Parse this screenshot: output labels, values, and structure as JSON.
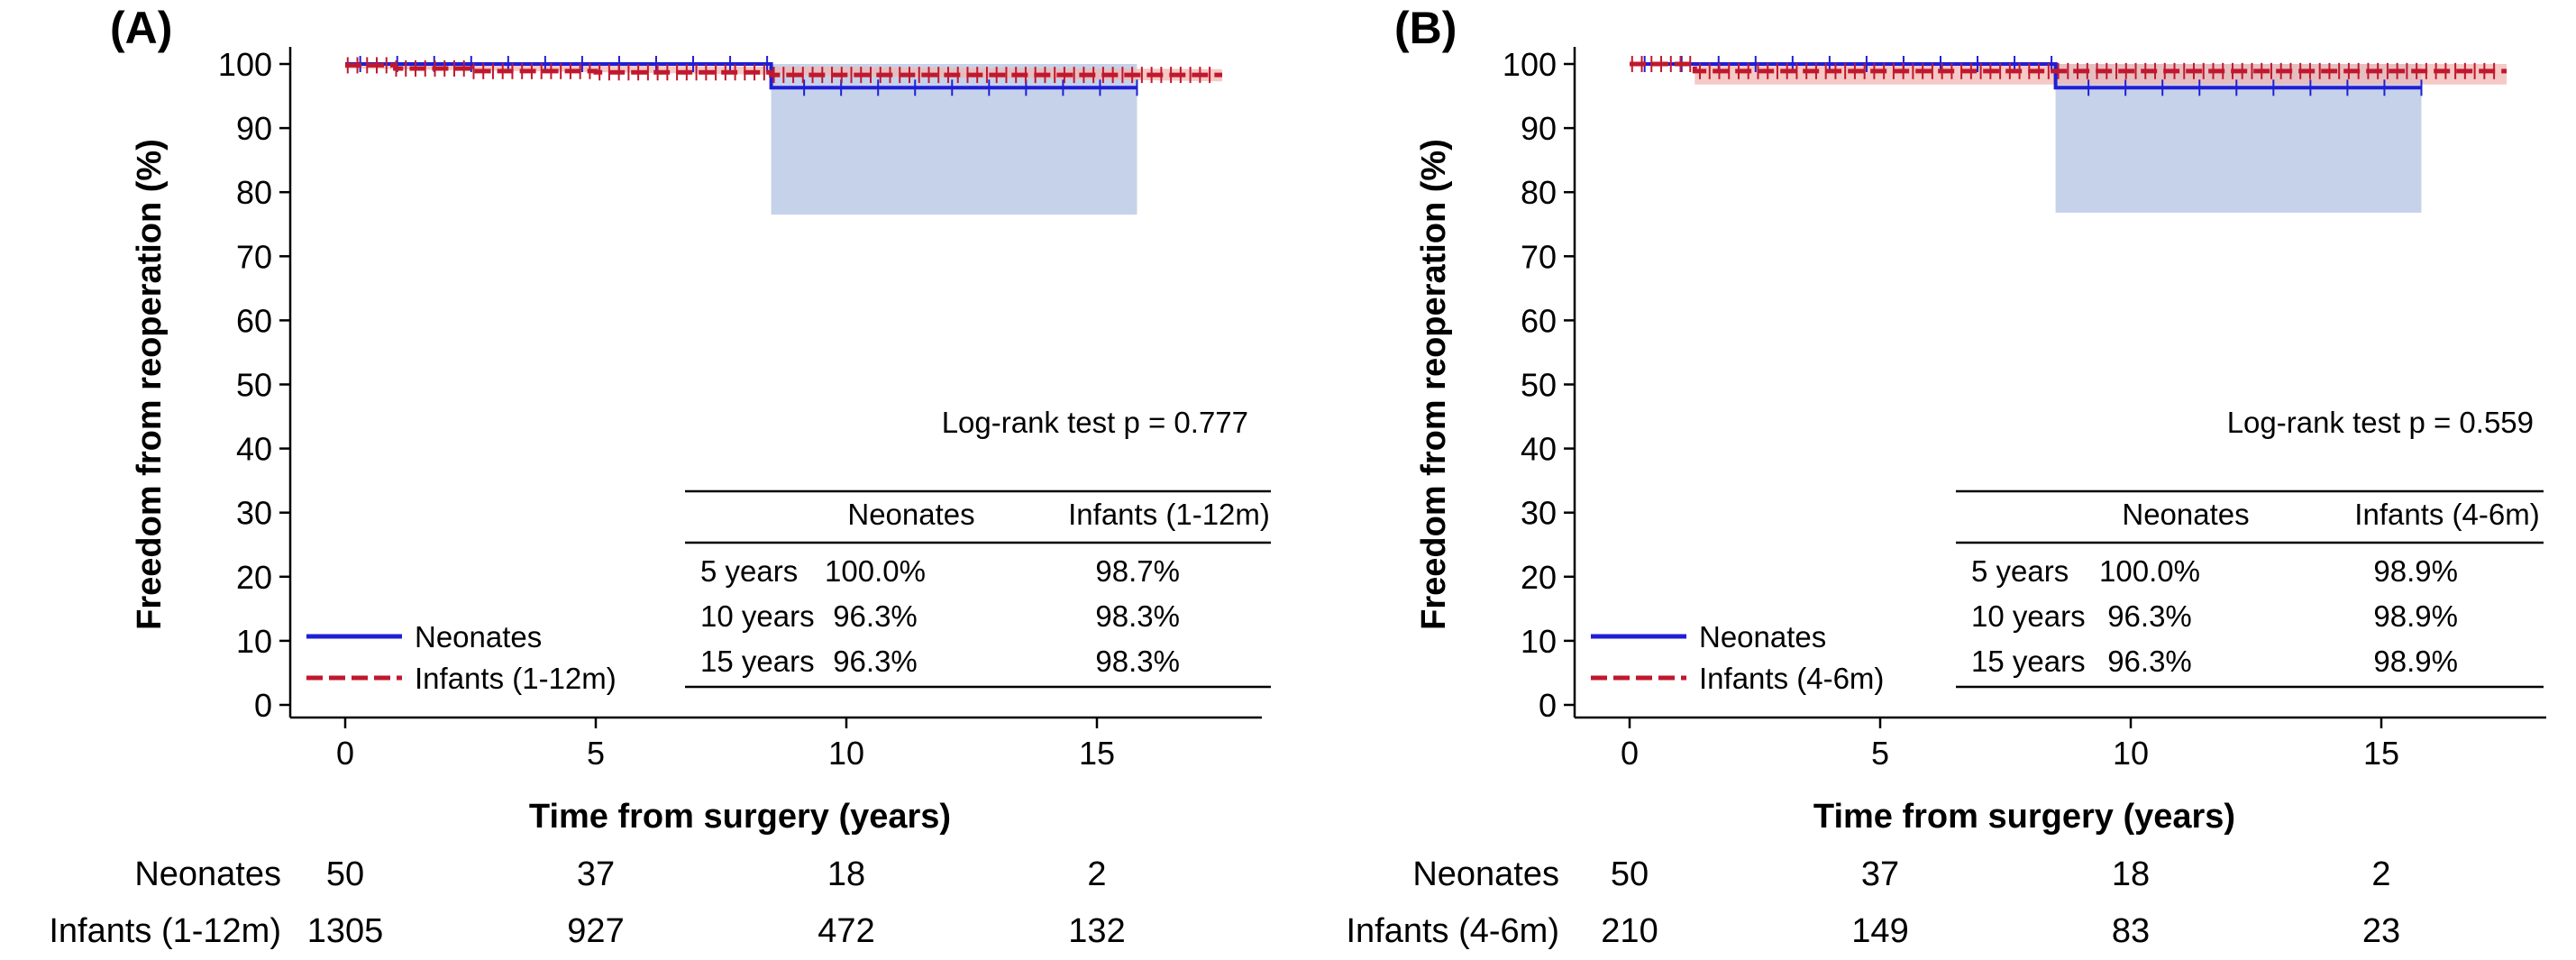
{
  "chart_data": [
    {
      "type": "line",
      "panel": "(A)",
      "xlabel": "Time from surgery (years)",
      "ylabel": "Freedom from reoperation (%)",
      "xlim": [
        -1,
        18.5
      ],
      "ylim": [
        0,
        100
      ],
      "xticks": [
        0,
        5,
        10,
        15
      ],
      "yticks": [
        0,
        10,
        20,
        30,
        40,
        50,
        60,
        70,
        80,
        90,
        100
      ],
      "colors": {
        "neonates": "#1f1fd6",
        "infants": "#c0182e",
        "neonates_ci": "#c6d2ea",
        "infants_ci": "#f2b7b2"
      },
      "series": [
        {
          "name": "Neonates",
          "x": [
            0,
            8.5,
            8.5,
            15.8
          ],
          "y": [
            100,
            100,
            96.3,
            96.3
          ]
        },
        {
          "name": "Infants (1-12m)",
          "x": [
            0,
            1,
            2.5,
            5,
            8.5,
            17.5
          ],
          "y": [
            99.8,
            99.3,
            98.9,
            98.7,
            98.3,
            98.3
          ]
        }
      ],
      "neonates_ci": {
        "x": [
          8.5,
          15.8
        ],
        "lower": 76.5,
        "upper": 100
      },
      "infants_ci": {
        "x": [
          0,
          17.5
        ],
        "lower": [
          99.3,
          97.3
        ],
        "upper": [
          100,
          99.2
        ]
      },
      "logrank": "Log-rank test p = 0.777",
      "table": {
        "headers": [
          "Neonates",
          "Infants (1-12m)"
        ],
        "rows": [
          {
            "label": "5 years",
            "neonates": "100.0%",
            "infants": "98.7%"
          },
          {
            "label": "10 years",
            "neonates": "96.3%",
            "infants": "98.3%"
          },
          {
            "label": "15 years",
            "neonates": "96.3%",
            "infants": "98.3%"
          }
        ]
      },
      "legend": [
        "Neonates",
        "Infants (1-12m)"
      ],
      "risk_table": {
        "rows": [
          {
            "label": "Neonates",
            "values": [
              "50",
              "37",
              "18",
              "2"
            ]
          },
          {
            "label": "Infants (1-12m)",
            "values": [
              "1305",
              "927",
              "472",
              "132"
            ]
          }
        ]
      }
    },
    {
      "type": "line",
      "panel": "(B)",
      "xlabel": "Time from surgery (years)",
      "ylabel": "Freedom from reoperation (%)",
      "xlim": [
        -1,
        18.5
      ],
      "ylim": [
        0,
        100
      ],
      "xticks": [
        0,
        5,
        10,
        15
      ],
      "yticks": [
        0,
        10,
        20,
        30,
        40,
        50,
        60,
        70,
        80,
        90,
        100
      ],
      "colors": {
        "neonates": "#1f1fd6",
        "infants": "#c0182e",
        "neonates_ci": "#c6d2ea",
        "infants_ci": "#f2b7b2"
      },
      "series": [
        {
          "name": "Neonates",
          "x": [
            0,
            8.5,
            8.5,
            15.8
          ],
          "y": [
            100,
            100,
            96.3,
            96.3
          ]
        },
        {
          "name": "Infants (4-6m)",
          "x": [
            0,
            1.3,
            1.3,
            17.5
          ],
          "y": [
            100,
            100,
            98.9,
            98.9
          ]
        }
      ],
      "neonates_ci": {
        "x": [
          8.5,
          15.8
        ],
        "lower": 76.8,
        "upper": 100
      },
      "infants_ci": {
        "x": [
          1.3,
          17.5
        ],
        "lower": [
          96.8,
          96.8
        ],
        "upper": [
          100,
          100
        ]
      },
      "logrank": "Log-rank test p = 0.559",
      "table": {
        "headers": [
          "Neonates",
          "Infants (4-6m)"
        ],
        "rows": [
          {
            "label": "5 years",
            "neonates": "100.0%",
            "infants": "98.9%"
          },
          {
            "label": "10 years",
            "neonates": "96.3%",
            "infants": "98.9%"
          },
          {
            "label": "15 years",
            "neonates": "96.3%",
            "infants": "98.9%"
          }
        ]
      },
      "legend": [
        "Neonates",
        "Infants (4-6m)"
      ],
      "risk_table": {
        "rows": [
          {
            "label": "Neonates",
            "values": [
              "50",
              "37",
              "18",
              "2"
            ]
          },
          {
            "label": "Infants (4-6m)",
            "values": [
              "210",
              "149",
              "83",
              "23"
            ]
          }
        ]
      }
    }
  ]
}
